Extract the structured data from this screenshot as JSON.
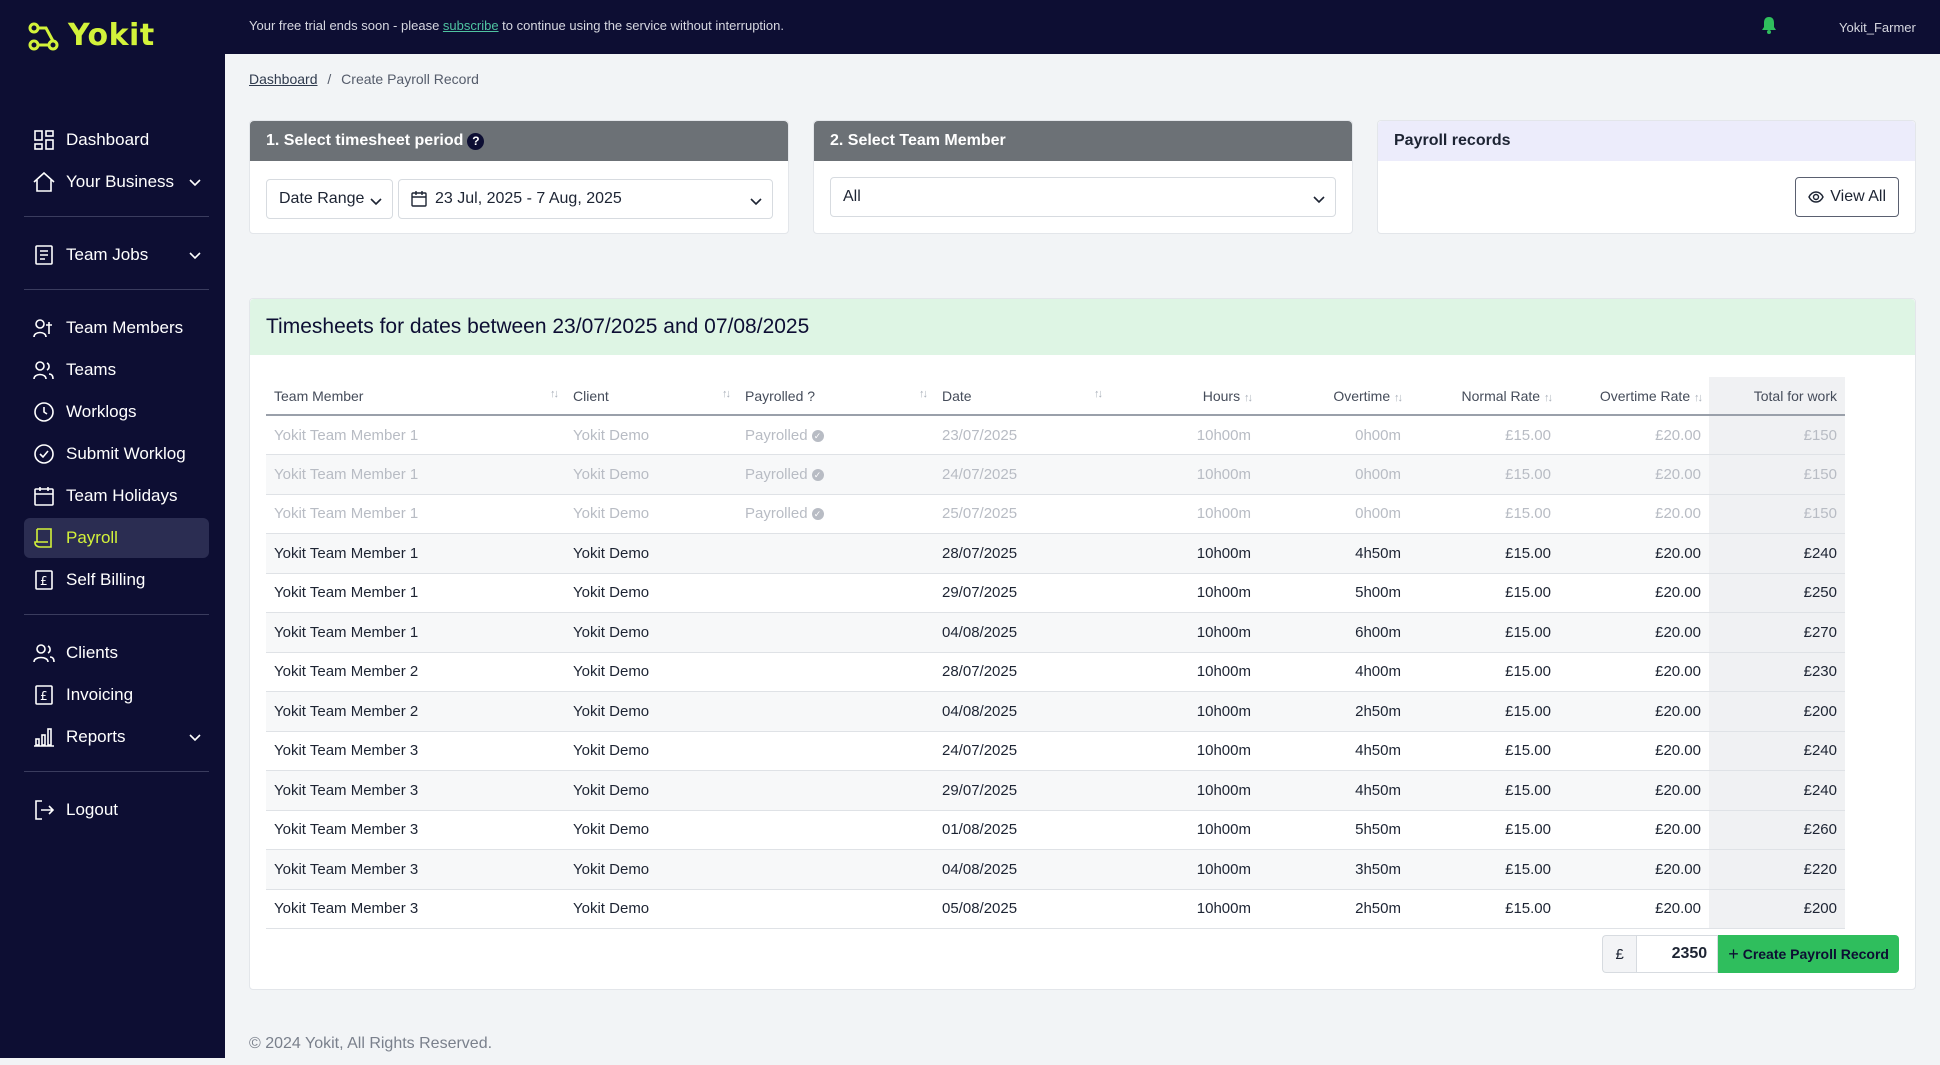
{
  "brand": {
    "name": "Yokit",
    "accent": "#d3f23a",
    "sidebar_bg": "#0d0e33"
  },
  "topbar": {
    "trial_prefix": "Your free trial ends soon - please ",
    "trial_link": "subscribe",
    "trial_suffix": " to continue using the service without interruption.",
    "username": "Yokit_Farmer"
  },
  "sidebar": {
    "items": [
      {
        "label": "Dashboard",
        "icon": "grid-icon"
      },
      {
        "label": "Your Business",
        "icon": "home-icon",
        "expandable": true
      },
      {
        "label": "Team Jobs",
        "icon": "clipboard-icon",
        "expandable": true
      },
      {
        "label": "Team Members",
        "icon": "users-icon"
      },
      {
        "label": "Teams",
        "icon": "team-icon"
      },
      {
        "label": "Worklogs",
        "icon": "clock-icon"
      },
      {
        "label": "Submit Worklog",
        "icon": "clock-check-icon"
      },
      {
        "label": "Team Holidays",
        "icon": "calendar-icon"
      },
      {
        "label": "Payroll",
        "icon": "payroll-icon",
        "active": true
      },
      {
        "label": "Self Billing",
        "icon": "pound-doc-icon"
      },
      {
        "label": "Clients",
        "icon": "clients-icon"
      },
      {
        "label": "Invoicing",
        "icon": "invoice-icon"
      },
      {
        "label": "Reports",
        "icon": "bar-chart-icon",
        "expandable": true
      },
      {
        "label": "Logout",
        "icon": "logout-icon"
      }
    ]
  },
  "breadcrumb": {
    "home": "Dashboard",
    "separator": "/",
    "current": "Create Payroll Record"
  },
  "period_card": {
    "title": "1. Select timesheet period",
    "help": "?",
    "range_type": "Date Range",
    "range_value": "23 Jul, 2025 - 7 Aug, 2025"
  },
  "member_card": {
    "title": "2. Select Team Member",
    "selected": "All"
  },
  "records_card": {
    "title": "Payroll records",
    "view_all": "View All"
  },
  "timesheets": {
    "title": "Timesheets for dates between 23/07/2025 and 07/08/2025",
    "columns": [
      "Team Member",
      "Client",
      "Payrolled ?",
      "Date",
      "Hours",
      "Overtime",
      "Normal Rate",
      "Overtime Rate",
      "Total for work"
    ],
    "rows": [
      {
        "member": "Yokit Team Member 1",
        "client": "Yokit Demo",
        "payrolled": "Payrolled",
        "date": "23/07/2025",
        "hours": "10h00m",
        "overtime": "0h00m",
        "normal_rate": "£15.00",
        "overtime_rate": "£20.00",
        "total": "£150"
      },
      {
        "member": "Yokit Team Member 1",
        "client": "Yokit Demo",
        "payrolled": "Payrolled",
        "date": "24/07/2025",
        "hours": "10h00m",
        "overtime": "0h00m",
        "normal_rate": "£15.00",
        "overtime_rate": "£20.00",
        "total": "£150"
      },
      {
        "member": "Yokit Team Member 1",
        "client": "Yokit Demo",
        "payrolled": "Payrolled",
        "date": "25/07/2025",
        "hours": "10h00m",
        "overtime": "0h00m",
        "normal_rate": "£15.00",
        "overtime_rate": "£20.00",
        "total": "£150"
      },
      {
        "member": "Yokit Team Member 1",
        "client": "Yokit Demo",
        "payrolled": "",
        "date": "28/07/2025",
        "hours": "10h00m",
        "overtime": "4h50m",
        "normal_rate": "£15.00",
        "overtime_rate": "£20.00",
        "total": "£240"
      },
      {
        "member": "Yokit Team Member 1",
        "client": "Yokit Demo",
        "payrolled": "",
        "date": "29/07/2025",
        "hours": "10h00m",
        "overtime": "5h00m",
        "normal_rate": "£15.00",
        "overtime_rate": "£20.00",
        "total": "£250"
      },
      {
        "member": "Yokit Team Member 1",
        "client": "Yokit Demo",
        "payrolled": "",
        "date": "04/08/2025",
        "hours": "10h00m",
        "overtime": "6h00m",
        "normal_rate": "£15.00",
        "overtime_rate": "£20.00",
        "total": "£270"
      },
      {
        "member": "Yokit Team Member 2",
        "client": "Yokit Demo",
        "payrolled": "",
        "date": "28/07/2025",
        "hours": "10h00m",
        "overtime": "4h00m",
        "normal_rate": "£15.00",
        "overtime_rate": "£20.00",
        "total": "£230"
      },
      {
        "member": "Yokit Team Member 2",
        "client": "Yokit Demo",
        "payrolled": "",
        "date": "04/08/2025",
        "hours": "10h00m",
        "overtime": "2h50m",
        "normal_rate": "£15.00",
        "overtime_rate": "£20.00",
        "total": "£200"
      },
      {
        "member": "Yokit Team Member 3",
        "client": "Yokit Demo",
        "payrolled": "",
        "date": "24/07/2025",
        "hours": "10h00m",
        "overtime": "4h50m",
        "normal_rate": "£15.00",
        "overtime_rate": "£20.00",
        "total": "£240"
      },
      {
        "member": "Yokit Team Member 3",
        "client": "Yokit Demo",
        "payrolled": "",
        "date": "29/07/2025",
        "hours": "10h00m",
        "overtime": "4h50m",
        "normal_rate": "£15.00",
        "overtime_rate": "£20.00",
        "total": "£240"
      },
      {
        "member": "Yokit Team Member 3",
        "client": "Yokit Demo",
        "payrolled": "",
        "date": "01/08/2025",
        "hours": "10h00m",
        "overtime": "5h50m",
        "normal_rate": "£15.00",
        "overtime_rate": "£20.00",
        "total": "£260"
      },
      {
        "member": "Yokit Team Member 3",
        "client": "Yokit Demo",
        "payrolled": "",
        "date": "04/08/2025",
        "hours": "10h00m",
        "overtime": "3h50m",
        "normal_rate": "£15.00",
        "overtime_rate": "£20.00",
        "total": "£220"
      },
      {
        "member": "Yokit Team Member 3",
        "client": "Yokit Demo",
        "payrolled": "",
        "date": "05/08/2025",
        "hours": "10h00m",
        "overtime": "2h50m",
        "normal_rate": "£15.00",
        "overtime_rate": "£20.00",
        "total": "£200"
      }
    ],
    "currency_symbol": "£",
    "total_value": "2350",
    "create_label": "Create Payroll Record"
  },
  "footer": "© 2024 Yokit, All Rights Reserved."
}
